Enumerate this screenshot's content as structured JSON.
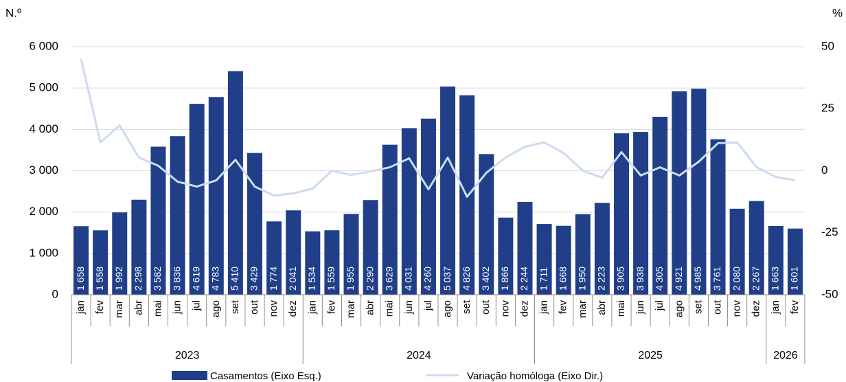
{
  "chart_data": {
    "type": "bar_line",
    "y_axis_label": "N.º",
    "y2_axis_label": "%",
    "groups": [
      {
        "label": "2023",
        "categories": [
          "jan",
          "fev",
          "mar",
          "abr",
          "mai",
          "jun",
          "jul",
          "ago",
          "set",
          "out",
          "nov",
          "dez"
        ]
      },
      {
        "label": "2024",
        "categories": [
          "jan",
          "fev",
          "mar",
          "abr",
          "mai",
          "jun",
          "jul",
          "ago",
          "set",
          "out",
          "nov",
          "dez"
        ]
      },
      {
        "label": "2025",
        "categories": [
          "jan",
          "fev",
          "mar",
          "abr",
          "mai",
          "jun",
          "jul",
          "ago",
          "set",
          "out",
          "nov",
          "dez"
        ]
      },
      {
        "label": "2026",
        "categories": [
          "jan",
          "fev"
        ]
      }
    ],
    "series": [
      {
        "name": "Casamentos (Eixo Esq.)",
        "type": "bar",
        "color": "#203f88",
        "values": [
          1658,
          1558,
          1992,
          2298,
          3582,
          3836,
          4619,
          4783,
          5410,
          3429,
          1774,
          2041,
          1534,
          1559,
          1955,
          2290,
          3629,
          4031,
          4260,
          5037,
          4826,
          3402,
          1866,
          2244,
          1711,
          1668,
          1950,
          2223,
          3905,
          3938,
          4305,
          4921,
          4985,
          3761,
          2080,
          2267,
          1663,
          1601
        ],
        "value_labels": [
          "1 658",
          "1 558",
          "1 992",
          "2 298",
          "3 582",
          "3 836",
          "4 619",
          "4 783",
          "5 410",
          "3 429",
          "1 774",
          "2 041",
          "1 534",
          "1 559",
          "1 955",
          "2 290",
          "3 629",
          "4 031",
          "4 260",
          "5 037",
          "4 826",
          "3 402",
          "1 866",
          "2 244",
          "1 711",
          "1 668",
          "1 950",
          "2 223",
          "3 905",
          "3 938",
          "4 305",
          "4 921",
          "4 985",
          "3 761",
          "2 080",
          "2 267",
          "1 663",
          "1 601"
        ]
      },
      {
        "name": "Variação homóloga (Eixo Dir.)",
        "type": "line",
        "axis": "y2",
        "color": "#cddbf0",
        "values": [
          45,
          11.4,
          18.3,
          5.3,
          2,
          -4.4,
          -6.4,
          -3.9,
          4.4,
          -6.4,
          -10,
          -9.1,
          -7.2,
          0,
          -1.7,
          -0.3,
          1.4,
          5,
          -7.5,
          5.3,
          -10.5,
          -0.8,
          5.3,
          9.7,
          11.4,
          7.2,
          0,
          -2.8,
          7.5,
          -1.9,
          1.4,
          -1.9,
          3.6,
          11.1,
          11.4,
          1.4,
          -2.5,
          -3.9
        ]
      }
    ],
    "ylim": [
      0,
      6000
    ],
    "yticks": [
      {
        "value": 0,
        "label": "0"
      },
      {
        "value": 1000,
        "label": "1 000"
      },
      {
        "value": 2000,
        "label": "2 000"
      },
      {
        "value": 3000,
        "label": "3 000"
      },
      {
        "value": 4000,
        "label": "4 000"
      },
      {
        "value": 5000,
        "label": "5 000"
      },
      {
        "value": 6000,
        "label": "6 000"
      }
    ],
    "y2lim": [
      -50,
      50
    ],
    "y2ticks": [
      -50,
      -25,
      0,
      25,
      50
    ],
    "grid": true
  }
}
